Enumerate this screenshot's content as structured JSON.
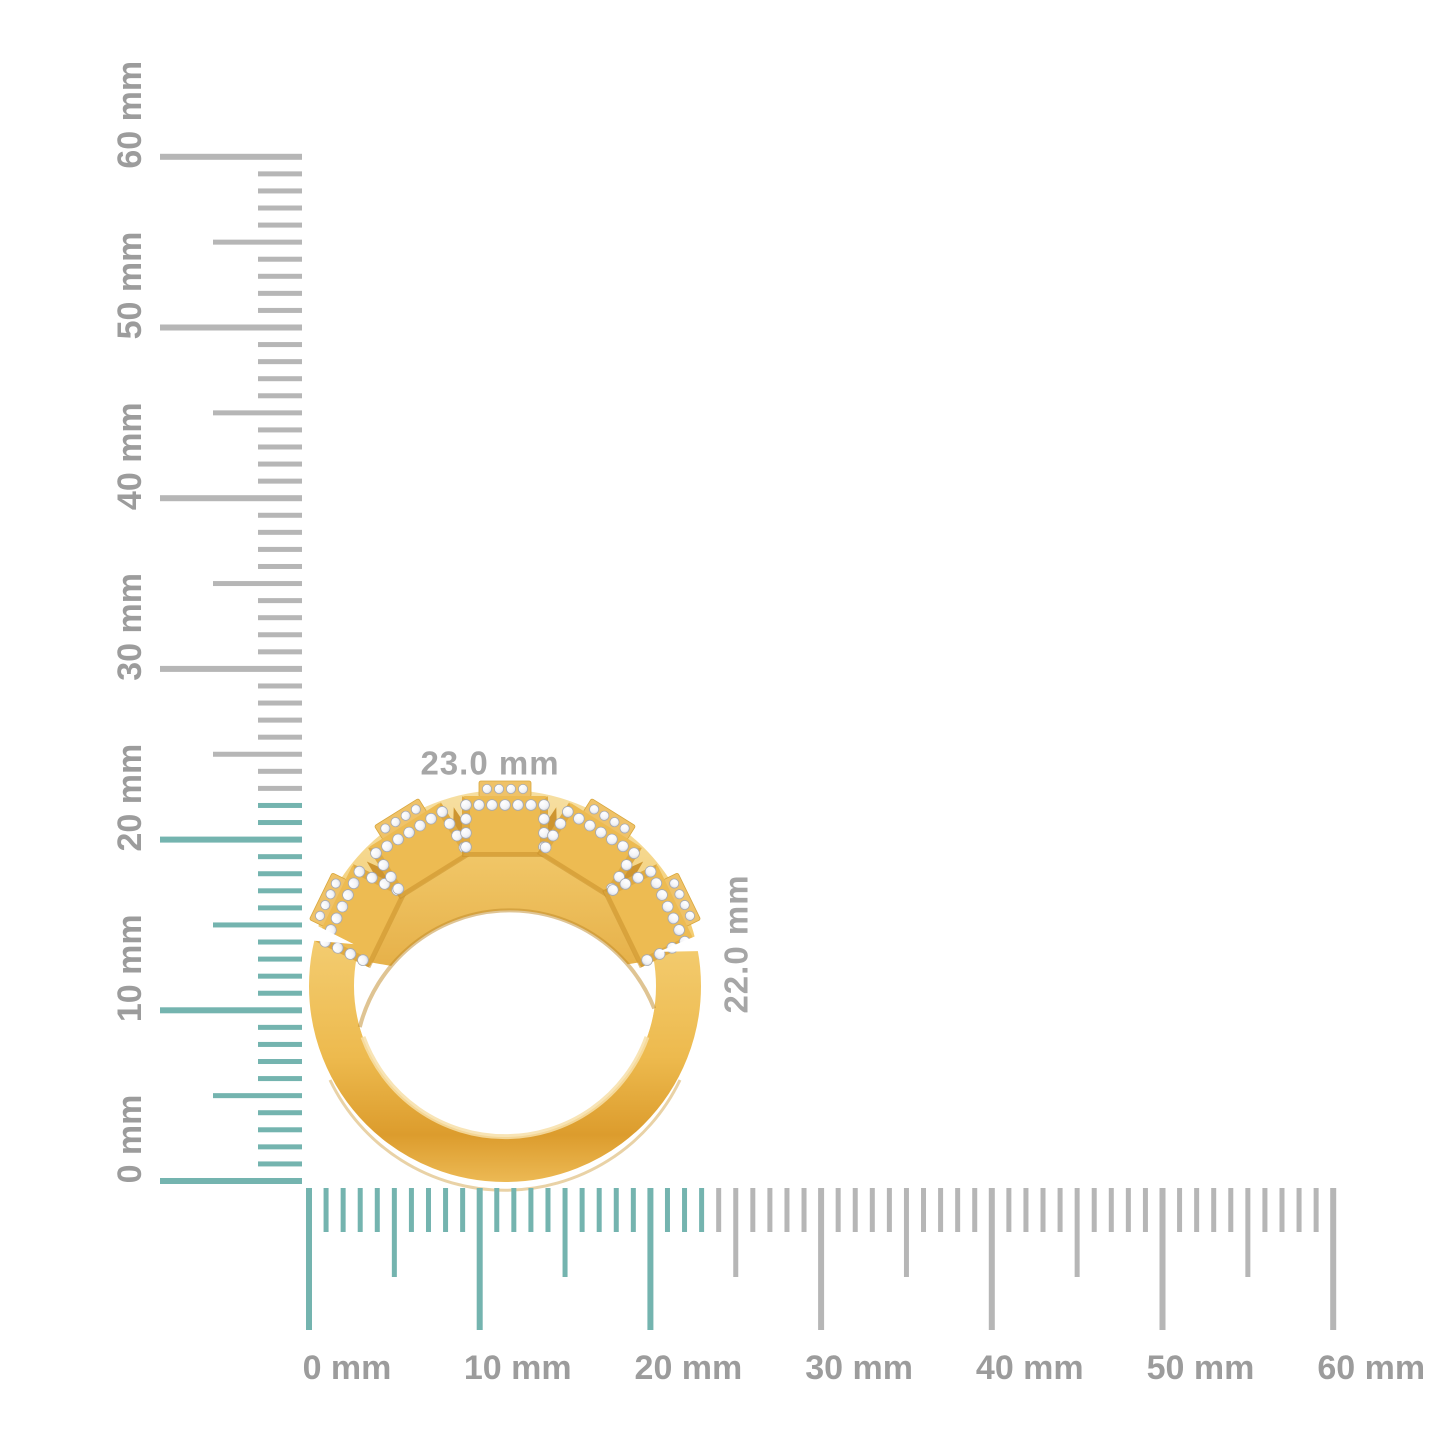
{
  "figure": {
    "subject": "yellow gold ring with five diamond halo clusters, side profile",
    "width_label": "23.0 mm",
    "height_label": "22.0 mm",
    "width_mm": 23.0,
    "height_mm": 22.0
  },
  "rulers": {
    "unit": "mm",
    "minor_step_mm": 1,
    "mid_step_mm": 5,
    "major_step_mm": 10,
    "vertical": {
      "min_mm": 0,
      "max_mm": 60,
      "labels": [
        "0 mm",
        "10 mm",
        "20 mm",
        "30 mm",
        "40 mm",
        "50 mm",
        "60 mm"
      ],
      "highlighted_to_mm": 22
    },
    "horizontal": {
      "min_mm": 0,
      "max_mm": 60,
      "labels": [
        "0 mm",
        "10 mm",
        "20 mm",
        "30 mm",
        "40 mm",
        "50 mm",
        "60 mm"
      ],
      "highlighted_to_mm": 23
    }
  },
  "colors": {
    "background": "#FFFFFF",
    "tick_highlight": "#74B4AF",
    "tick_default": "#B6B6B6",
    "ruler_label": "#9C9C9C",
    "dimension_label": "#A6A6A6",
    "gold_light": "#F8E0A2",
    "gold_mid": "#F2C667",
    "gold_dark": "#D2952C",
    "diamond": "#F8F9FB"
  }
}
